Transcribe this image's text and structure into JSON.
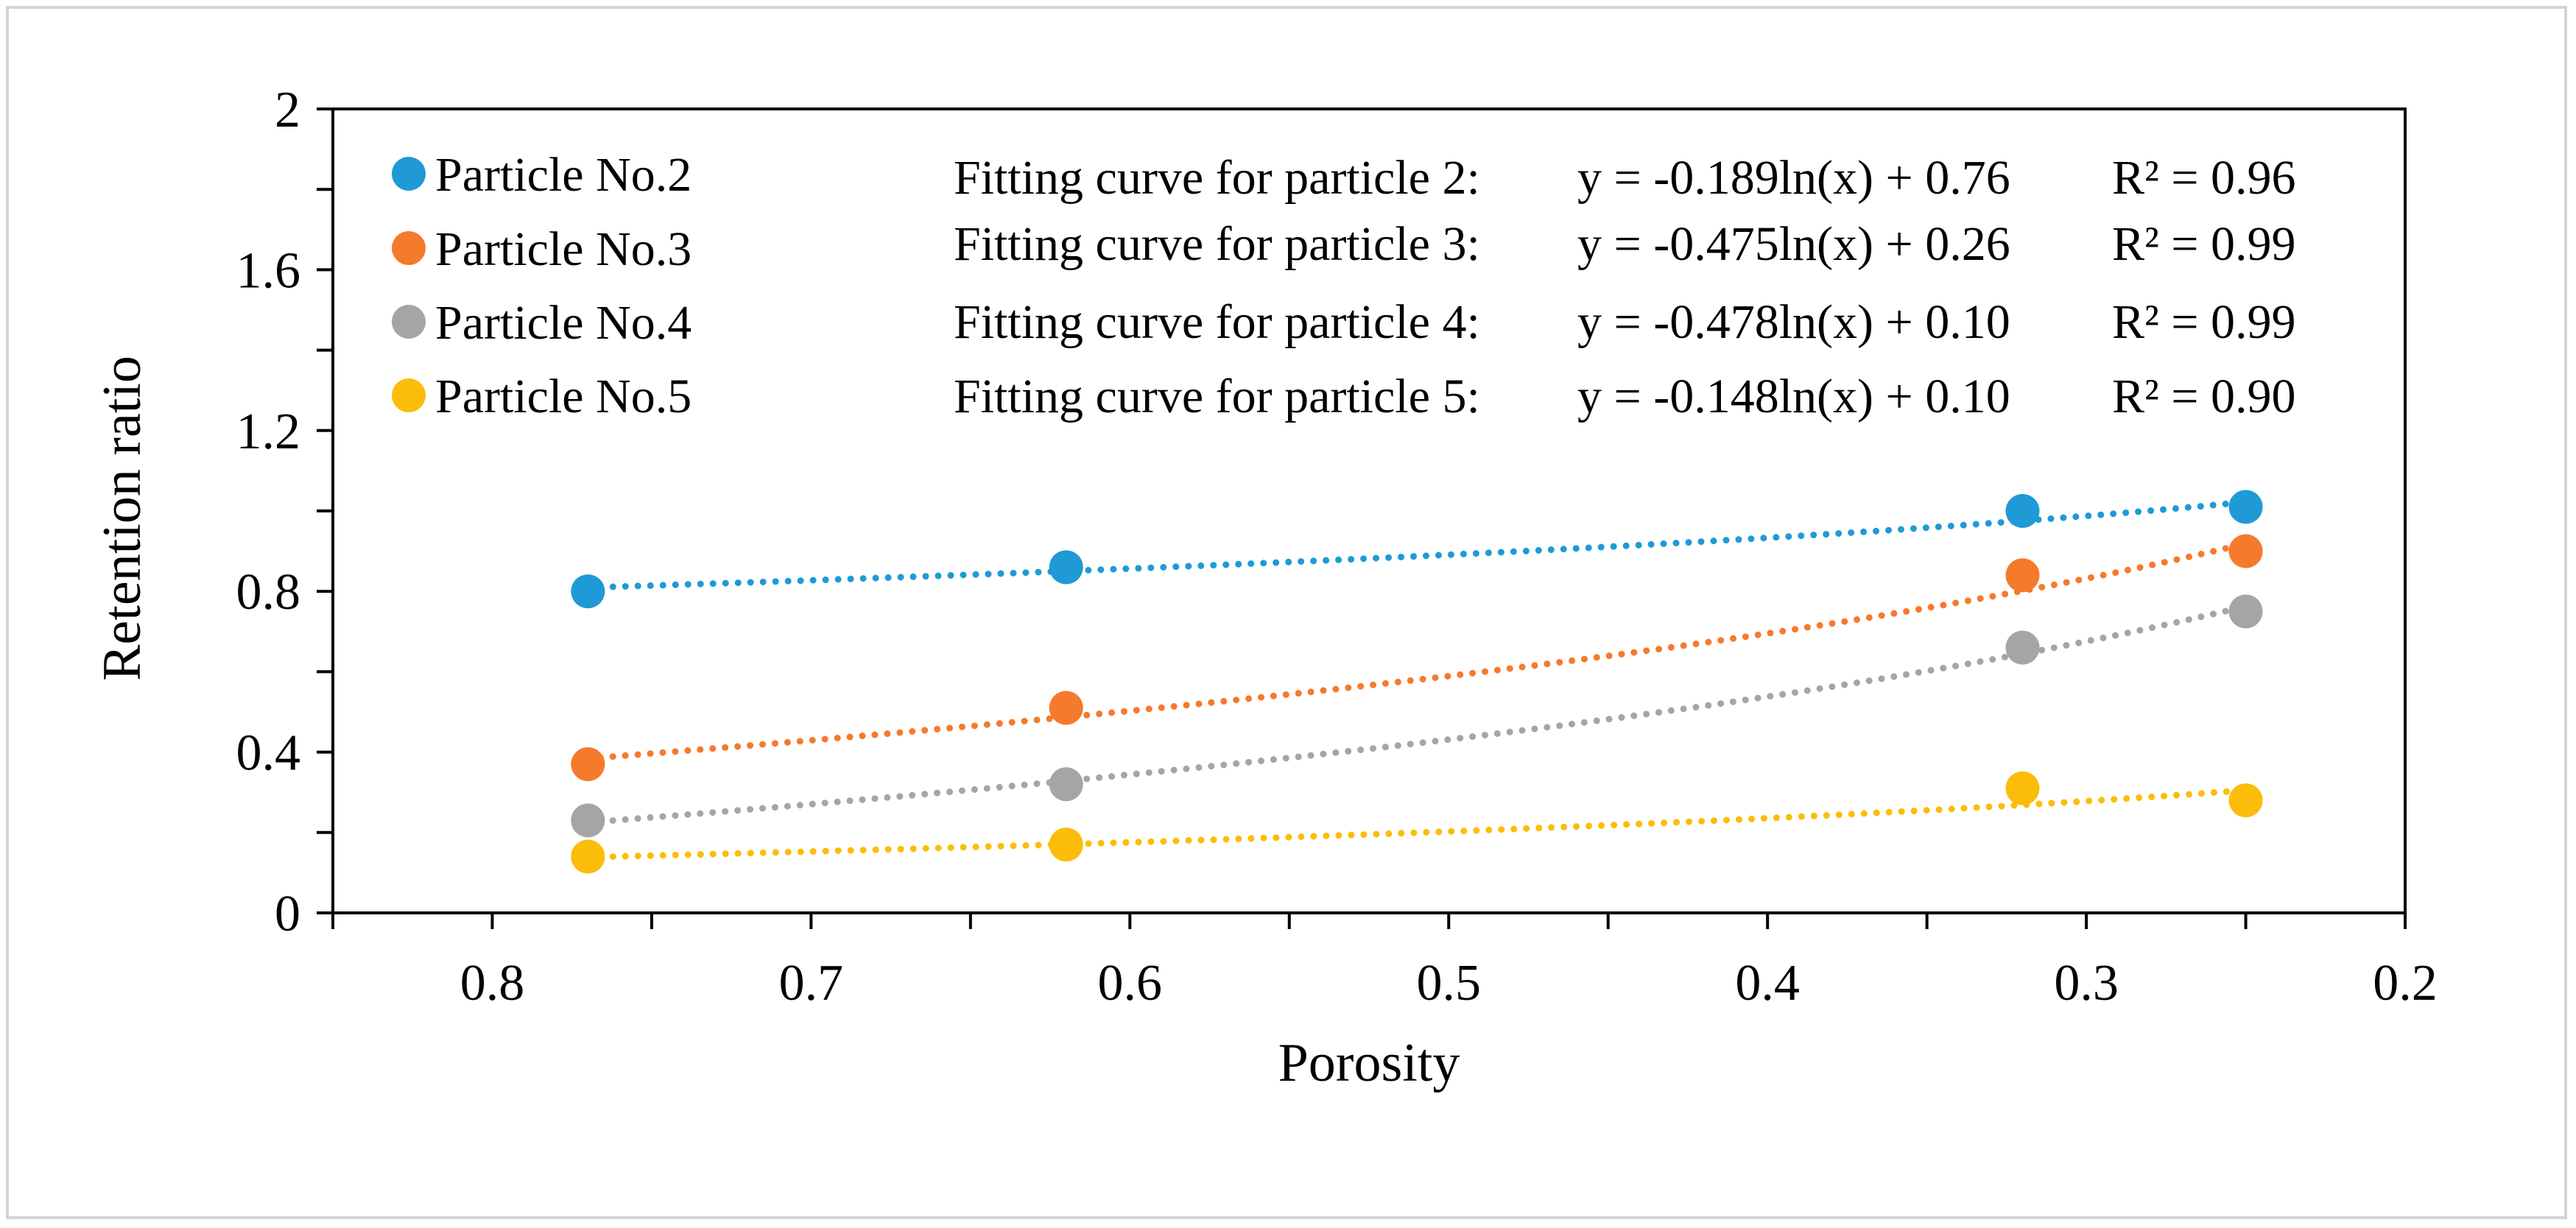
{
  "chart_data": {
    "type": "scatter",
    "title": "",
    "xlabel": "Porosity",
    "ylabel": "Retention ratio",
    "xlim": [
      0.85,
      0.2
    ],
    "ylim": [
      0,
      2
    ],
    "x_ticks": [
      "0.8",
      "0.7",
      "0.6",
      "0.5",
      "0.4",
      "0.3",
      "0.2"
    ],
    "y_ticks": [
      "0",
      "0.4",
      "0.8",
      "1.2",
      "1.6",
      "2"
    ],
    "legend_position": "top-left",
    "series": [
      {
        "name": "Particle No.2",
        "color": "#1f9ad6",
        "x": [
          0.77,
          0.62,
          0.32,
          0.25
        ],
        "y": [
          0.8,
          0.86,
          1.0,
          1.01
        ],
        "fit_label": "Fitting curve for particle 2:",
        "equation": "y = -0.189ln(x) + 0.76",
        "r2": "R² = 0.96",
        "fit": {
          "a": -0.189,
          "b": 0.76
        }
      },
      {
        "name": "Particle No.3",
        "color": "#f57a2c",
        "x": [
          0.77,
          0.62,
          0.32,
          0.25
        ],
        "y": [
          0.37,
          0.51,
          0.84,
          0.9
        ],
        "fit_label": "Fitting curve for particle 3:",
        "equation": "y = -0.475ln(x) + 0.26",
        "r2": "R² = 0.99",
        "fit": {
          "a": -0.475,
          "b": 0.26
        }
      },
      {
        "name": "Particle No.4",
        "color": "#a5a5a5",
        "x": [
          0.77,
          0.62,
          0.32,
          0.25
        ],
        "y": [
          0.23,
          0.32,
          0.66,
          0.75
        ],
        "fit_label": "Fitting curve for particle 4:",
        "equation": "y = -0.478ln(x) + 0.10",
        "r2": "R² = 0.99",
        "fit": {
          "a": -0.478,
          "b": 0.1
        }
      },
      {
        "name": "Particle No.5",
        "color": "#fbbd09",
        "x": [
          0.77,
          0.62,
          0.32,
          0.25
        ],
        "y": [
          0.14,
          0.17,
          0.31,
          0.28
        ],
        "fit_label": "Fitting curve for particle 5:",
        "equation": "y = -0.148ln(x) + 0.10",
        "r2": "R² = 0.90",
        "fit": {
          "a": -0.148,
          "b": 0.1
        }
      }
    ]
  }
}
